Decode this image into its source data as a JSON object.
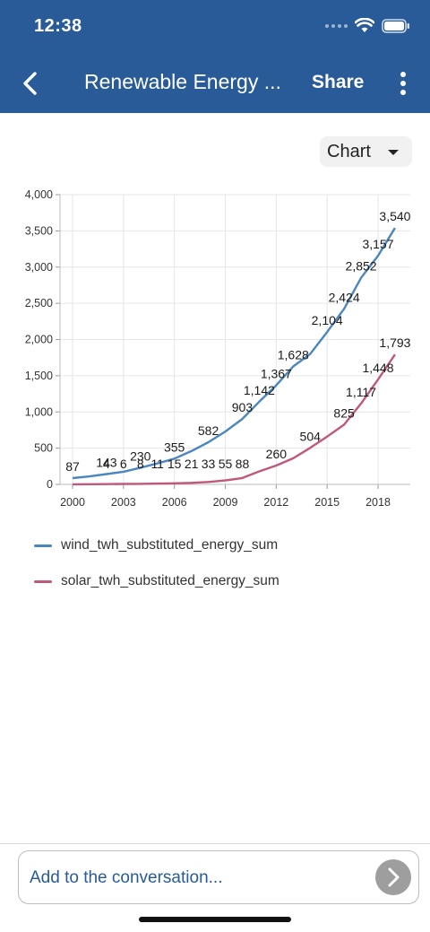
{
  "status_bar": {
    "time": "12:38"
  },
  "header": {
    "title": "Renewable Energy ...",
    "share_label": "Share"
  },
  "view_selector": {
    "selected": "Chart"
  },
  "chart_data": {
    "type": "line",
    "x": [
      2000,
      2001,
      2002,
      2003,
      2004,
      2005,
      2006,
      2007,
      2008,
      2009,
      2010,
      2011,
      2012,
      2013,
      2014,
      2015,
      2016,
      2017,
      2018,
      2019
    ],
    "xticks": [
      "2000",
      "2003",
      "2006",
      "2009",
      "2012",
      "2015",
      "2018"
    ],
    "yticks": [
      "0",
      "500",
      "1,000",
      "1,500",
      "2,000",
      "2,500",
      "3,000",
      "3,500",
      "4,000"
    ],
    "ylim": [
      0,
      4000
    ],
    "grid": true,
    "legend_position": "bottom",
    "series": [
      {
        "name": "wind_twh_substituted_energy_sum",
        "color": "#4a86bf",
        "values": [
          87,
          110,
          143,
          175,
          230,
          290,
          355,
          460,
          582,
          730,
          903,
          1142,
          1367,
          1628,
          1800,
          2104,
          2424,
          2852,
          3157,
          3540
        ],
        "labels": [
          "87",
          "",
          "143",
          "",
          "230",
          "",
          "355",
          "",
          "582",
          "",
          "903",
          "1,142",
          "1,367",
          "1,628",
          "",
          "2,104",
          "2,424",
          "2,852",
          "3,157",
          "3,540"
        ]
      },
      {
        "name": "solar_twh_substituted_energy_sum",
        "color": "#c0587a",
        "values": [
          1,
          2,
          4,
          6,
          8,
          11,
          15,
          21,
          33,
          55,
          88,
          180,
          260,
          360,
          504,
          660,
          825,
          1117,
          1448,
          1793
        ],
        "labels": [
          "",
          "",
          "4",
          "6",
          "8",
          "11",
          "15",
          "21",
          "33",
          "55",
          "88",
          "",
          "260",
          "",
          "504",
          "",
          "825",
          "1,117",
          "1,448",
          "1,793"
        ]
      }
    ]
  },
  "composer": {
    "placeholder": "Add to the conversation..."
  }
}
